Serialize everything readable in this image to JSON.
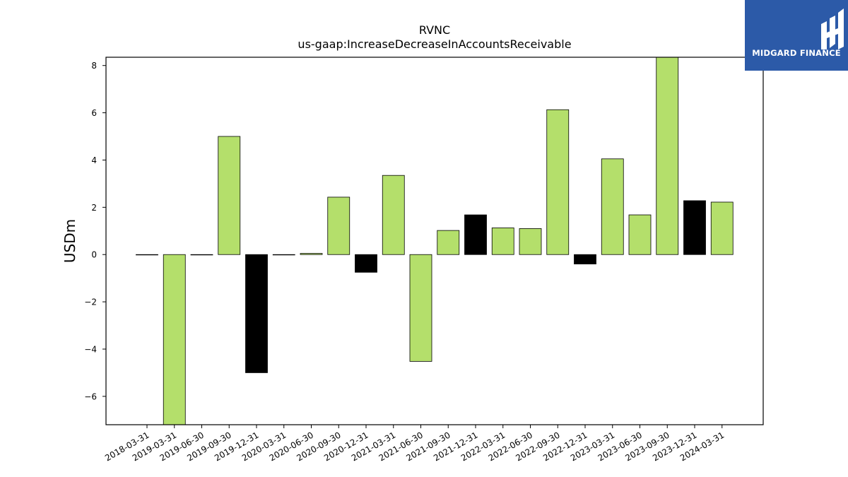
{
  "brand": {
    "name": "MIDGARD FINANCE",
    "bg_color": "#2c5aa8"
  },
  "chart_data": {
    "type": "bar",
    "title": "RVNC",
    "subtitle": "us-gaap:IncreaseDecreaseInAccountsReceivable",
    "ylabel": "USDm",
    "xlabel": "",
    "ylim": [
      -7.2,
      8.35
    ],
    "yticks": [
      -6,
      -4,
      -2,
      0,
      2,
      4,
      6,
      8
    ],
    "grid": false,
    "categories": [
      "2018-03-31",
      "2019-03-31",
      "2019-06-30",
      "2019-09-30",
      "2019-12-31",
      "2020-03-31",
      "2020-06-30",
      "2020-09-30",
      "2020-12-31",
      "2021-03-31",
      "2021-06-30",
      "2021-09-30",
      "2021-12-31",
      "2022-03-31",
      "2022-06-30",
      "2022-09-30",
      "2022-12-31",
      "2023-03-31",
      "2023-06-30",
      "2023-09-30",
      "2023-12-31",
      "2024-03-31"
    ],
    "values": [
      0.0,
      -7.5,
      0.0,
      5.0,
      -5.0,
      0.0,
      0.05,
      2.43,
      -0.75,
      3.35,
      -4.52,
      1.02,
      1.68,
      1.13,
      1.1,
      6.13,
      -0.4,
      4.05,
      1.68,
      8.4,
      2.28,
      2.22
    ],
    "bar_colors": [
      "#b4df6b",
      "#b4df6b",
      "#b4df6b",
      "#b4df6b",
      "#000000",
      "#b4df6b",
      "#b4df6b",
      "#b4df6b",
      "#000000",
      "#b4df6b",
      "#b4df6b",
      "#b4df6b",
      "#000000",
      "#b4df6b",
      "#b4df6b",
      "#b4df6b",
      "#000000",
      "#b4df6b",
      "#b4df6b",
      "#b4df6b",
      "#000000",
      "#b4df6b"
    ],
    "colors": {
      "green": "#b4df6b",
      "black": "#000000"
    }
  }
}
